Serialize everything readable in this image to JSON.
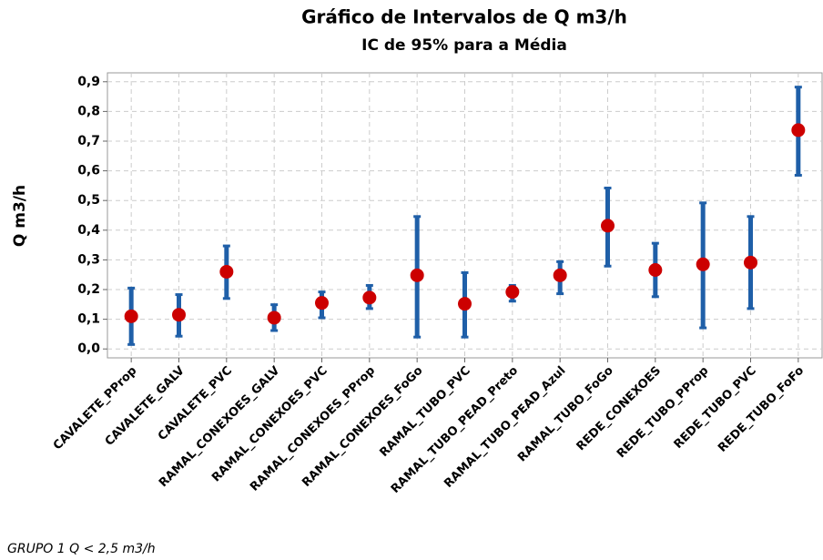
{
  "chart_data": {
    "type": "interval",
    "title": "Gráfico de Intervalos de Q m3/h",
    "subtitle": "IC de 95% para a Média",
    "ylabel": "Q m3/h",
    "footnote": "GRUPO 1  Q  < 2,5 m3/h",
    "categories": [
      "CAVALETE_PProp",
      "CAVALETE_GALV",
      "CAVALETE_PVC",
      "RAMAL_CONEXOES_GALV",
      "RAMAL_CONEXOES_PVC",
      "RAMAL_CONEXOES_PProp",
      "RAMAL_CONEXOES_FoGo",
      "RAMAL_TUBO_PVC",
      "RAMAL_TUBO_PEAD_Preto",
      "RAMAL_TUBO_PEAD_Azul",
      "RAMAL_TUBO_FoGo",
      "REDE_CONEXOES",
      "REDE_TUBO_PProp",
      "REDE_TUBO_PVC",
      "REDE_TUBO_FoFo"
    ],
    "values": [
      0.11,
      0.115,
      0.26,
      0.105,
      0.155,
      0.173,
      0.248,
      0.152,
      0.192,
      0.248,
      0.415,
      0.266,
      0.285,
      0.291,
      0.737
    ],
    "lower": [
      0.015,
      0.043,
      0.17,
      0.062,
      0.105,
      0.136,
      0.04,
      0.04,
      0.161,
      0.186,
      0.279,
      0.176,
      0.071,
      0.136,
      0.585
    ],
    "upper": [
      0.205,
      0.183,
      0.347,
      0.149,
      0.192,
      0.214,
      0.446,
      0.257,
      0.214,
      0.294,
      0.542,
      0.356,
      0.492,
      0.446,
      0.882
    ],
    "interval_color": "#1f5fa8",
    "mean_color": "#cc0000",
    "ylim": [
      -0.03,
      0.93
    ],
    "yticks": [
      {
        "value": 0,
        "label": "0,0"
      },
      {
        "value": 0.1,
        "label": "0,1"
      },
      {
        "value": 0.2,
        "label": "0,2"
      },
      {
        "value": 0.3,
        "label": "0,3"
      },
      {
        "value": 0.4,
        "label": "0,4"
      },
      {
        "value": 0.5,
        "label": "0,5"
      },
      {
        "value": 0.6,
        "label": "0,6"
      },
      {
        "value": 0.7,
        "label": "0,7"
      },
      {
        "value": 0.8,
        "label": "0,8"
      },
      {
        "value": 0.9,
        "label": "0,9"
      }
    ],
    "grid": true
  }
}
